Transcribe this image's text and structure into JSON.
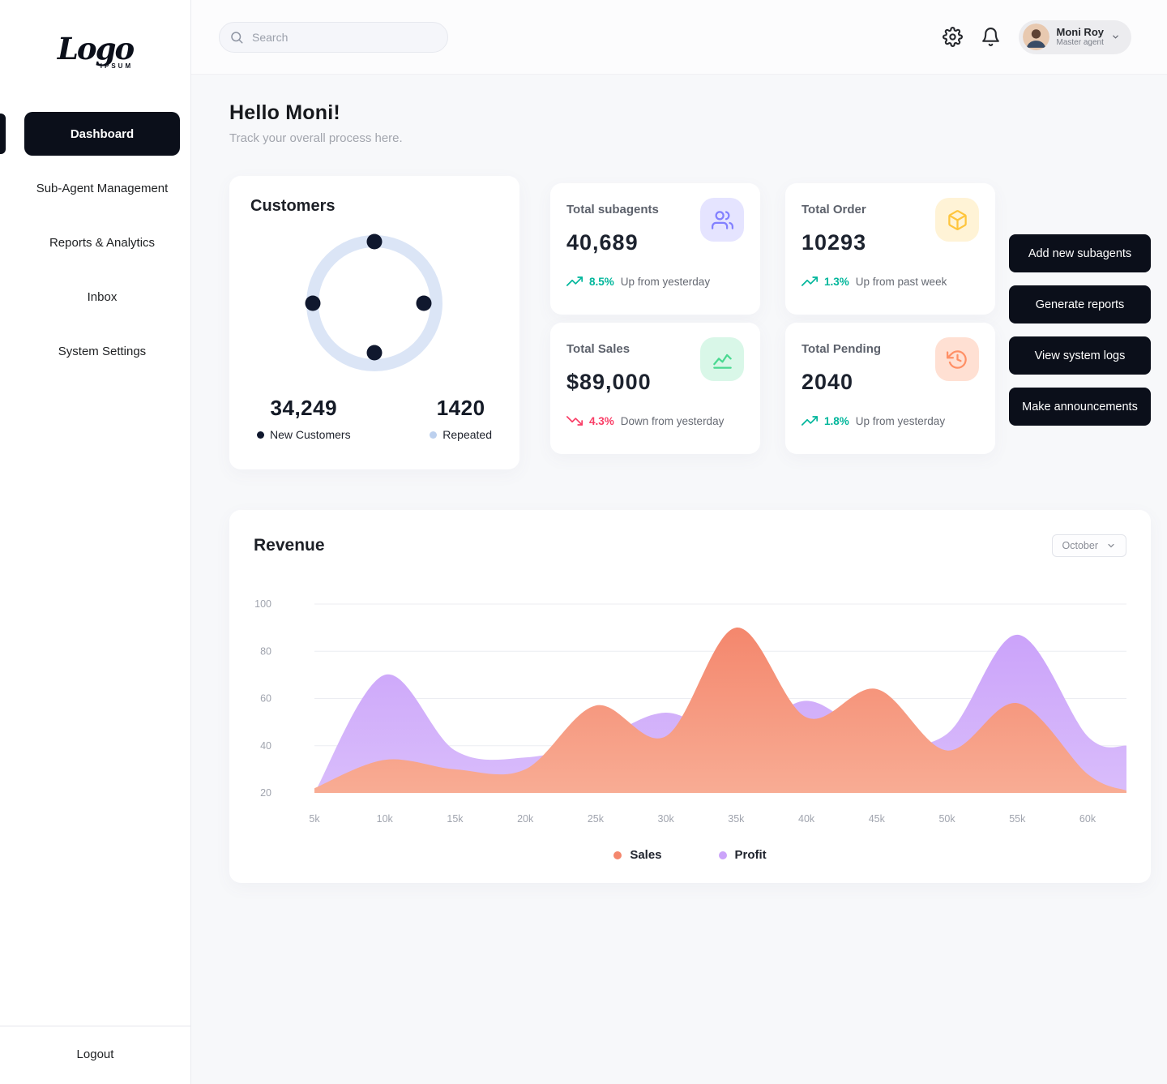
{
  "sidebar": {
    "logo": {
      "text": "Logo",
      "sub": "IPSUM"
    },
    "items": [
      {
        "label": "Dashboard",
        "active": true
      },
      {
        "label": "Sub-Agent Management",
        "active": false
      },
      {
        "label": "Reports & Analytics",
        "active": false
      },
      {
        "label": "Inbox",
        "active": false
      },
      {
        "label": "System Settings",
        "active": false
      }
    ],
    "logout_label": "Logout"
  },
  "topbar": {
    "search_placeholder": "Search",
    "user": {
      "name": "Moni Roy",
      "role": "Master agent"
    }
  },
  "header": {
    "greeting": "Hello Moni!",
    "subtitle": "Track your overall process here."
  },
  "customers": {
    "title": "Customers",
    "new_value": "34,249",
    "new_label": "New Customers",
    "repeated_value": "1420",
    "repeated_label": "Repeated"
  },
  "stats": [
    {
      "label": "Total subagents",
      "value": "40,689",
      "icon": "users-icon",
      "trend_dir": "up",
      "trend_value": "8.5%",
      "trend_text": "Up from yesterday"
    },
    {
      "label": "Total Order",
      "value": "10293",
      "icon": "box-icon",
      "trend_dir": "up",
      "trend_value": "1.3%",
      "trend_text": "Up from past week"
    },
    {
      "label": "Total Sales",
      "value": "$89,000",
      "icon": "chart-line-icon",
      "trend_dir": "down",
      "trend_value": "4.3%",
      "trend_text": "Down from yesterday"
    },
    {
      "label": "Total Pending",
      "value": "2040",
      "icon": "history-icon",
      "trend_dir": "up",
      "trend_value": "1.8%",
      "trend_text": "Up from yesterday"
    }
  ],
  "actions": [
    {
      "label": "Add new subagents"
    },
    {
      "label": "Generate reports"
    },
    {
      "label": "View system logs"
    },
    {
      "label": "Make announcements"
    }
  ],
  "revenue": {
    "title": "Revenue",
    "month_selected": "October",
    "legend": [
      {
        "label": "Sales"
      },
      {
        "label": "Profit"
      }
    ]
  },
  "colors": {
    "accent_dark": "#0b0f1a",
    "trend_up": "#00B69B",
    "trend_down": "#F93C65",
    "icon_purple": "#8280FF",
    "icon_yellow": "#FEC53D",
    "icon_green": "#4AD991",
    "icon_orange": "#FF9066"
  },
  "chart_data": {
    "type": "area",
    "title": "Revenue",
    "x_tick_labels": [
      "5k",
      "10k",
      "15k",
      "20k",
      "25k",
      "30k",
      "35k",
      "40k",
      "45k",
      "50k",
      "55k",
      "60k"
    ],
    "y_tick_labels": [
      100,
      80,
      60,
      40,
      20
    ],
    "ylim": [
      20,
      100
    ],
    "grid": true,
    "legend_position": "bottom",
    "series": [
      {
        "name": "Profit",
        "color_top": "#CBA3FA",
        "color_bottom": "#D9BDFB",
        "values": [
          20,
          70,
          38,
          35,
          42,
          54,
          43,
          59,
          43,
          45,
          87,
          44
        ],
        "end_value": 40
      },
      {
        "name": "Sales",
        "color_top": "#F4876D",
        "color_bottom": "#F8AC94",
        "values": [
          22,
          34,
          30,
          30,
          57,
          44,
          90,
          52,
          64,
          38,
          58,
          28
        ],
        "end_value": 21
      }
    ]
  }
}
